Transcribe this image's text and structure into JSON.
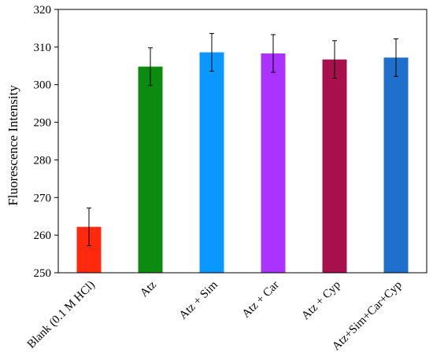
{
  "chart_data": {
    "type": "bar",
    "title": "",
    "xlabel": "",
    "ylabel": "Fluorescence Intensity",
    "ylim": [
      250,
      320
    ],
    "yticks": [
      250,
      260,
      270,
      280,
      290,
      300,
      310,
      320
    ],
    "grid": false,
    "categories": [
      "Blank (0.1 M HCl)",
      "Atz",
      "Atz + Sim",
      "Atz + Car",
      "Atz + Cyp",
      "Atz+Sim+Car+Cyp"
    ],
    "values": [
      262.2,
      304.8,
      308.6,
      308.3,
      306.7,
      307.2
    ],
    "errors": [
      5.0,
      5.0,
      5.0,
      5.0,
      5.0,
      5.0
    ],
    "colors": [
      "#ff2a0e",
      "#0b8b10",
      "#0a97ff",
      "#aa33ff",
      "#a8104d",
      "#1f6fcc"
    ]
  }
}
